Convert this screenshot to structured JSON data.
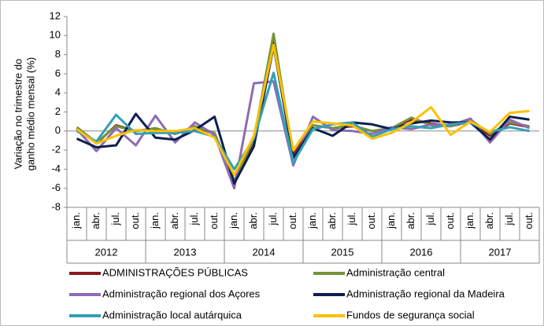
{
  "chart_data": {
    "type": "line",
    "y_axis_label": [
      "Variação no trimestre do",
      "ganho médio mensal (%)"
    ],
    "categories": [
      "jan.",
      "abr.",
      "jul.",
      "out.",
      "jan.",
      "abr.",
      "jul.",
      "out.",
      "jan.",
      "abr.",
      "jul.",
      "out.",
      "jan.",
      "abr.",
      "jul.",
      "out.",
      "jan.",
      "abr.",
      "jul.",
      "out.",
      "jan.",
      "abr.",
      "jul.",
      "out."
    ],
    "category_groups": [
      "2012",
      "2013",
      "2014",
      "2015",
      "2016",
      "2017"
    ],
    "ylim": [
      -8,
      12
    ],
    "yticks": [
      -8,
      -6,
      -4,
      -2,
      0,
      2,
      4,
      6,
      8,
      10,
      12
    ],
    "grid": false,
    "series": [
      {
        "name": "ADMINISTRAÇÕES PÚBLICAS",
        "color": "#8b1a1a",
        "values": [
          0.3,
          -1.3,
          0.6,
          0,
          0.2,
          -0.3,
          0.5,
          -0.3,
          -5.3,
          -1,
          9.8,
          -2.5,
          0.6,
          0.3,
          0.5,
          0,
          0.3,
          1.2,
          0.8,
          0.5,
          1,
          -0.5,
          0.8,
          0.4
        ]
      },
      {
        "name": "Administração central",
        "color": "#77933c",
        "values": [
          0.4,
          -1.2,
          0.5,
          0,
          0.3,
          -0.3,
          0.5,
          -0.2,
          -5.2,
          -0.8,
          10.2,
          -2.8,
          0.6,
          0.3,
          0.6,
          0,
          0.3,
          1.4,
          0.6,
          0.5,
          1.2,
          -0.3,
          0.9,
          0.5
        ]
      },
      {
        "name": "Administração regional dos Açores",
        "color": "#8e6bb5",
        "values": [
          0.2,
          -2.1,
          0.3,
          -1.5,
          1.6,
          -1.2,
          0.9,
          -0.4,
          -6,
          5,
          5.2,
          -3.6,
          1.5,
          0.1,
          0,
          -0.3,
          0.4,
          0.2,
          0.7,
          0.6,
          1.3,
          -1.2,
          1.2,
          0.3
        ]
      },
      {
        "name": "Administração regional da Madeira",
        "color": "#0d1f4f",
        "values": [
          -0.8,
          -1.7,
          -1.5,
          1.8,
          -0.7,
          -0.9,
          0.1,
          1.5,
          -5.5,
          -1.6,
          8.9,
          -2.8,
          0.3,
          -0.5,
          0.9,
          0.7,
          0.2,
          0.8,
          1.1,
          0.9,
          0.9,
          -0.9,
          1.5,
          1.2
        ]
      },
      {
        "name": "Administração local autárquica",
        "color": "#31a0b8",
        "values": [
          0,
          -1.1,
          1.7,
          -0.3,
          -0.2,
          -0.2,
          0,
          -0.6,
          -4,
          -0.8,
          6.1,
          -3.3,
          0.2,
          0.7,
          0.9,
          -0.6,
          0.2,
          0.5,
          0.3,
          0.7,
          0.9,
          -0.1,
          0.4,
          0
        ]
      },
      {
        "name": "Fundos de segurança social",
        "color": "#ffc000",
        "values": [
          0.2,
          -1.3,
          -0.5,
          0.1,
          0,
          0,
          0.3,
          -0.7,
          -4.6,
          -0.5,
          9,
          -2,
          1,
          0.8,
          0.6,
          -0.8,
          -0.2,
          0.9,
          2.5,
          -0.4,
          1,
          -0.1,
          1.9,
          2.1
        ]
      }
    ]
  }
}
